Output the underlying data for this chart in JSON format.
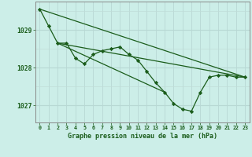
{
  "title": "Graphe pression niveau de la mer (hPa)",
  "bg_color": "#cceee8",
  "grid_color_v": "#b8d8d4",
  "grid_color_h": "#c0dcd8",
  "line_color": "#1a5c1a",
  "marker_color": "#1a5c1a",
  "axis_color": "#888888",
  "text_color": "#1a5c1a",
  "xlim": [
    -0.5,
    23.5
  ],
  "ylim": [
    1026.55,
    1029.75
  ],
  "yticks": [
    1027,
    1028,
    1029
  ],
  "xticks": [
    0,
    1,
    2,
    3,
    4,
    5,
    6,
    7,
    8,
    9,
    10,
    11,
    12,
    13,
    14,
    15,
    16,
    17,
    18,
    19,
    20,
    21,
    22,
    23
  ],
  "series1_x": [
    0,
    1,
    2,
    3,
    4,
    5,
    6,
    7,
    8,
    9,
    10,
    11,
    12,
    13,
    14,
    15,
    16,
    17,
    18,
    19,
    20,
    21,
    22,
    23
  ],
  "series1_y": [
    1029.55,
    1029.1,
    1028.65,
    1028.65,
    1028.25,
    1028.1,
    1028.35,
    1028.45,
    1028.5,
    1028.55,
    1028.35,
    1028.2,
    1027.9,
    1027.6,
    1027.35,
    1027.05,
    1026.9,
    1026.85,
    1027.35,
    1027.75,
    1027.8,
    1027.8,
    1027.75,
    1027.75
  ],
  "series2_x": [
    0,
    23
  ],
  "series2_y": [
    1029.55,
    1027.75
  ],
  "series3_x": [
    2,
    23
  ],
  "series3_y": [
    1028.65,
    1027.75
  ],
  "series4_x": [
    2,
    14
  ],
  "series4_y": [
    1028.65,
    1027.35
  ]
}
